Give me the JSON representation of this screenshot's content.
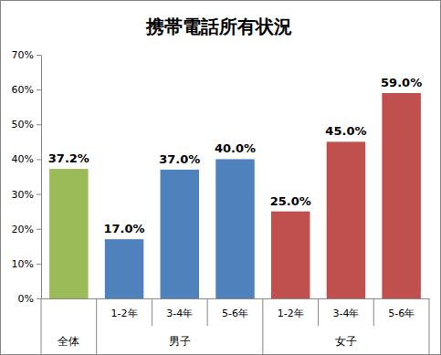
{
  "chart_data": {
    "type": "bar",
    "title": "携帯電話所有状況",
    "categories": [
      null,
      "1-2年",
      "3-4年",
      "5-6年",
      "1-2年",
      "3-4年",
      "5-6年"
    ],
    "groups": [
      {
        "name": "全体",
        "size": 1
      },
      {
        "name": "男子",
        "size": 3
      },
      {
        "name": "女子",
        "size": 3
      }
    ],
    "values": [
      37.2,
      17.0,
      37.0,
      40.0,
      25.0,
      45.0,
      59.0
    ],
    "value_labels": [
      "37.2%",
      "17.0%",
      "37.0%",
      "40.0%",
      "25.0%",
      "45.0%",
      "59.0%"
    ],
    "colors": [
      "#9bbb59",
      "#4f81bd",
      "#4f81bd",
      "#4f81bd",
      "#c0504d",
      "#c0504d",
      "#c0504d"
    ],
    "ylim": [
      0,
      70
    ],
    "yticks": [
      {
        "value": 0,
        "label": "0%"
      },
      {
        "value": 10,
        "label": "10%"
      },
      {
        "value": 20,
        "label": "20%"
      },
      {
        "value": 30,
        "label": "30%"
      },
      {
        "value": 40,
        "label": "40%"
      },
      {
        "value": 50,
        "label": "50%"
      },
      {
        "value": 60,
        "label": "60%"
      },
      {
        "value": 70,
        "label": "70%"
      }
    ],
    "grid": false,
    "data_labels": true
  }
}
